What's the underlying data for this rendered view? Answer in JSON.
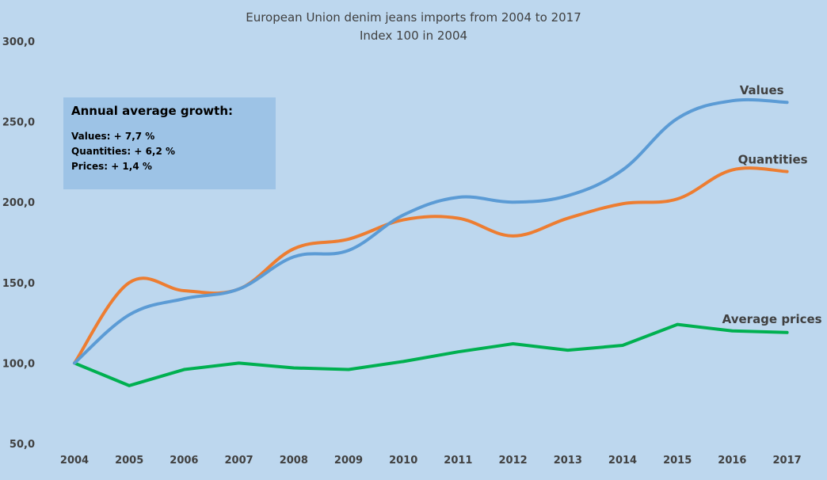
{
  "chart_data": {
    "type": "line",
    "title": "European Union denim jeans imports from 2004 to 2017",
    "subtitle": "Index 100 in 2004",
    "categories": [
      "2004",
      "2005",
      "2006",
      "2007",
      "2008",
      "2009",
      "2010",
      "2011",
      "2012",
      "2013",
      "2014",
      "2015",
      "2016",
      "2017"
    ],
    "ylim": [
      50,
      300
    ],
    "yticks": [
      50,
      100,
      150,
      200,
      250,
      300
    ],
    "ytick_labels": [
      "50,0",
      "100,0",
      "150,0",
      "200,0",
      "250,0",
      "300,0"
    ],
    "grid": false,
    "series": [
      {
        "name": "Values",
        "color": "#5b9bd5",
        "values": [
          100,
          130,
          140,
          146,
          166,
          170,
          192,
          203,
          200,
          204,
          220,
          252,
          263,
          262
        ]
      },
      {
        "name": "Quantities",
        "color": "#ed7d31",
        "values": [
          100,
          150,
          145,
          146,
          171,
          177,
          189,
          190,
          179,
          190,
          199,
          202,
          220,
          219
        ]
      },
      {
        "name": "Average prices",
        "color": "#00b050",
        "values": [
          100,
          86,
          96,
          100,
          97,
          96,
          101,
          107,
          112,
          108,
          111,
          124,
          120,
          119
        ]
      }
    ]
  },
  "info_box": {
    "heading": "Annual average growth:",
    "lines": [
      "Values: + 7,7 %",
      "Quantities: + 6,2 %",
      "Prices: + 1,4 %"
    ]
  }
}
